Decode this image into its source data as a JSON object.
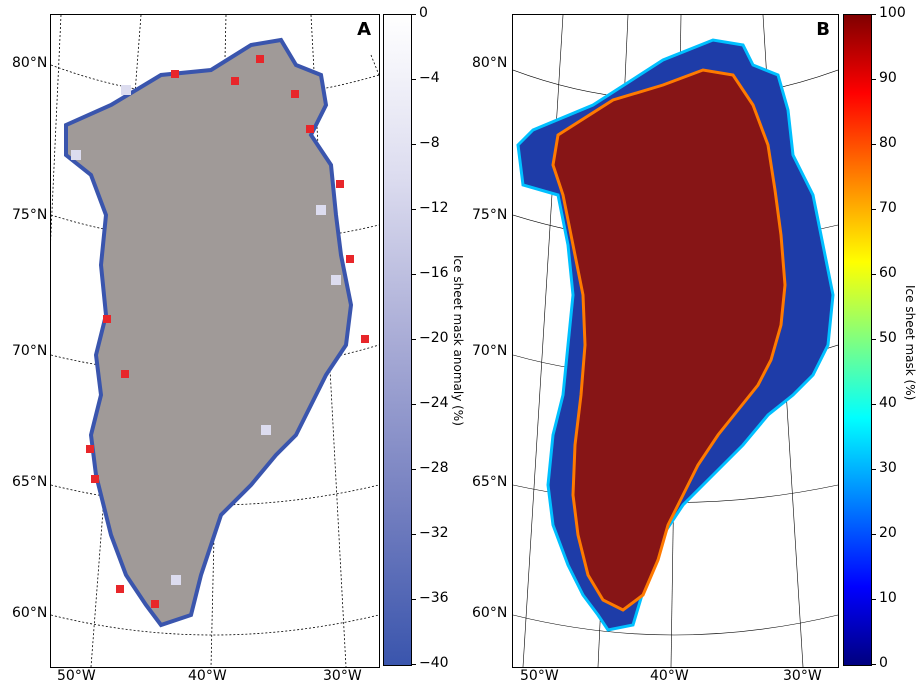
{
  "panels": [
    {
      "letter": "A",
      "colorbar": {
        "label": "Ice sheet mask anomaly (%)",
        "ticks": [
          "0",
          "−4",
          "−8",
          "−12",
          "−16",
          "−20",
          "−24",
          "−28",
          "−32",
          "−36",
          "−40"
        ],
        "range": [
          -40,
          0
        ],
        "colors": {
          "top": "#ffffff",
          "bottom": "#3a55ad"
        }
      },
      "land_color": "#a09a98",
      "highlight_color": "#e8262a"
    },
    {
      "letter": "B",
      "colorbar": {
        "label": "Ice sheet mask (%)",
        "ticks": [
          "100",
          "90",
          "80",
          "70",
          "60",
          "50",
          "40",
          "30",
          "20",
          "10",
          "0"
        ],
        "range": [
          0,
          100
        ],
        "colors": {
          "top": "#800000",
          "bottom": "#00007f"
        }
      },
      "interior_color": "#871516"
    }
  ],
  "lat_labels": [
    "80°N",
    "75°N",
    "70°N",
    "65°N",
    "60°N"
  ],
  "lon_labels": [
    "50°W",
    "40°W",
    "30°W"
  ]
}
